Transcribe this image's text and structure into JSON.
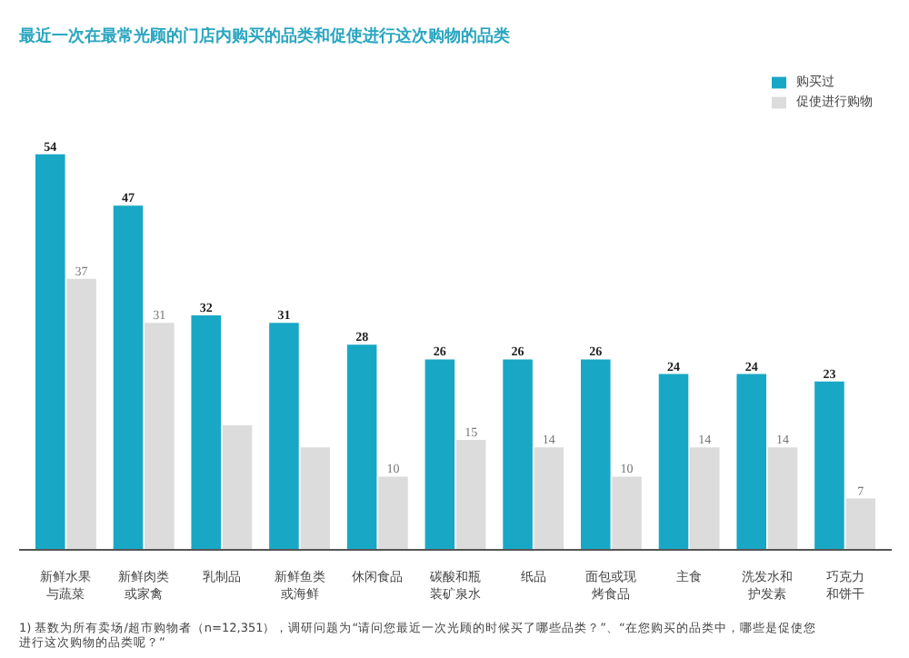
{
  "chart_data": {
    "type": "bar",
    "title": "最近一次在最常光顾的门店内购买的品类和促使进行这次购物的品类",
    "categories": [
      "新鲜水果与蔬菜",
      "新鲜肉类或家禽",
      "乳制品",
      "新鲜鱼类或海鲜",
      "休闲食品",
      "碳酸和瓶装矿泉水",
      "纸品",
      "面包或现烤食品",
      "主食",
      "洗发水和护发素",
      "巧克力和饼干"
    ],
    "series": [
      {
        "name": "购买过",
        "color": "#19a7c6",
        "values": [
          54,
          47,
          32,
          31,
          28,
          26,
          26,
          26,
          24,
          24,
          23
        ],
        "value_labels": [
          "54",
          "47",
          "32",
          "31",
          "28",
          "26",
          "26",
          "26",
          "24",
          "24",
          "23"
        ]
      },
      {
        "name": "促使进行购物",
        "color": "#dcdcdc",
        "values": [
          37,
          31,
          17,
          14,
          10,
          15,
          14,
          10,
          14,
          14,
          7
        ],
        "value_labels": [
          "37",
          "31",
          null,
          null,
          "10",
          "15",
          "14",
          "10",
          "14",
          "14",
          "7"
        ]
      }
    ],
    "legend": "top right",
    "grid": false,
    "annotations": [
      "1) 基数为所有卖场/超市购物者（n=12,351），调研问题为“请问您最近一次光顾的时候买了哪些品类？”、“在您购买的品类中，哪些是促使您进行这次购物的品类呢？”"
    ]
  }
}
